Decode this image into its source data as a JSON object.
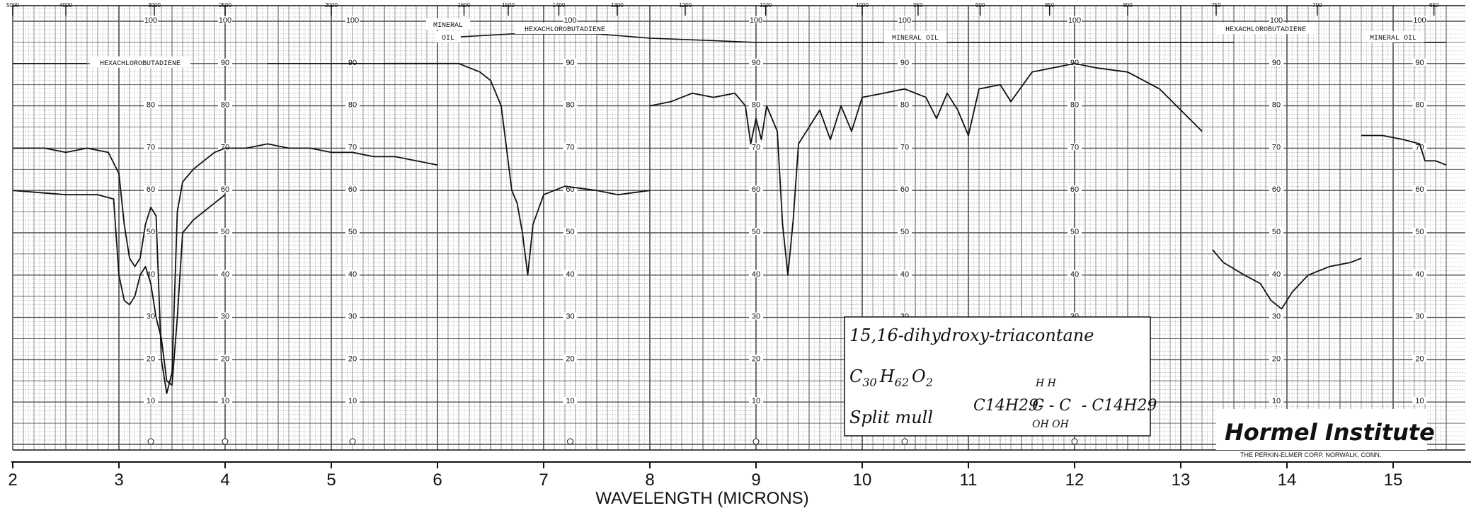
{
  "chart_data": {
    "type": "line",
    "title": "",
    "xlabel": "WAVELENGTH (MICRONS)",
    "ylabel": "",
    "xlim": [
      2,
      15.5
    ],
    "ylim": [
      0,
      100
    ],
    "grid": true,
    "x_ticks": [
      "2",
      "3",
      "4",
      "5",
      "6",
      "7",
      "8",
      "9",
      "10",
      "11",
      "12",
      "13",
      "14",
      "15"
    ],
    "y_ticks": [
      "0",
      "10",
      "20",
      "30",
      "40",
      "50",
      "60",
      "70",
      "80",
      "90",
      "100"
    ],
    "wavenumber_ticks": [
      {
        "value": 5000,
        "label": "5000"
      },
      {
        "value": 4000,
        "label": "4000"
      },
      {
        "value": 3000,
        "label": "3000"
      },
      {
        "value": 2500,
        "label": "2500"
      },
      {
        "value": 2000,
        "label": "2000"
      },
      {
        "value": 1600,
        "label": "1600"
      },
      {
        "value": 1500,
        "label": "1500"
      },
      {
        "value": 1400,
        "label": "1400"
      },
      {
        "value": 1300,
        "label": "1300"
      },
      {
        "value": 1200,
        "label": "1200"
      },
      {
        "value": 1100,
        "label": "1100"
      },
      {
        "value": 1000,
        "label": "1000"
      },
      {
        "value": 950,
        "label": "950"
      },
      {
        "value": 900,
        "label": "900"
      },
      {
        "value": 850,
        "label": "850"
      },
      {
        "value": 800,
        "label": "800"
      },
      {
        "value": 750,
        "label": "750"
      },
      {
        "value": 700,
        "label": "700"
      },
      {
        "value": 650,
        "label": "650"
      }
    ],
    "series": [
      {
        "name": "",
        "values": [
          [
            2.0,
            70
          ],
          [
            2.3,
            70
          ],
          [
            2.5,
            69
          ],
          [
            2.7,
            70
          ],
          [
            2.9,
            69
          ],
          [
            3.0,
            64
          ],
          [
            3.05,
            52
          ],
          [
            3.1,
            44
          ],
          [
            3.15,
            42
          ],
          [
            3.2,
            44
          ],
          [
            3.25,
            52
          ],
          [
            3.3,
            56
          ],
          [
            3.35,
            54
          ],
          [
            3.4,
            20
          ],
          [
            3.45,
            12
          ],
          [
            3.5,
            17
          ],
          [
            3.55,
            55
          ],
          [
            3.6,
            62
          ],
          [
            3.7,
            65
          ],
          [
            3.8,
            67
          ],
          [
            3.9,
            69
          ],
          [
            4.0,
            70
          ],
          [
            4.2,
            70
          ],
          [
            4.4,
            71
          ],
          [
            4.6,
            70
          ],
          [
            4.8,
            70
          ],
          [
            5.0,
            69
          ],
          [
            5.2,
            69
          ],
          [
            5.4,
            68
          ],
          [
            5.6,
            68
          ],
          [
            5.8,
            67
          ],
          [
            6.0,
            66
          ]
        ]
      },
      {
        "name": "",
        "values": [
          [
            2.0,
            60
          ],
          [
            2.5,
            59
          ],
          [
            2.8,
            59
          ],
          [
            2.95,
            58
          ],
          [
            3.0,
            40
          ],
          [
            3.05,
            34
          ],
          [
            3.1,
            33
          ],
          [
            3.15,
            35
          ],
          [
            3.2,
            40
          ],
          [
            3.25,
            42
          ],
          [
            3.3,
            38
          ],
          [
            3.35,
            30
          ],
          [
            3.4,
            25
          ],
          [
            3.45,
            15
          ],
          [
            3.5,
            14
          ],
          [
            3.55,
            30
          ],
          [
            3.6,
            50
          ],
          [
            3.7,
            53
          ],
          [
            3.8,
            55
          ],
          [
            3.9,
            57
          ],
          [
            4.0,
            59
          ]
        ]
      },
      {
        "name": "",
        "values": [
          [
            5.5,
            90
          ],
          [
            6.0,
            90
          ],
          [
            6.2,
            90
          ],
          [
            6.3,
            89
          ],
          [
            6.4,
            88
          ],
          [
            6.5,
            86
          ],
          [
            6.6,
            80
          ],
          [
            6.65,
            70
          ],
          [
            6.7,
            60
          ],
          [
            6.75,
            57
          ],
          [
            6.8,
            50
          ],
          [
            6.85,
            40
          ],
          [
            6.9,
            52
          ],
          [
            7.0,
            59
          ],
          [
            7.2,
            61
          ],
          [
            7.5,
            60
          ],
          [
            7.7,
            59
          ],
          [
            8.0,
            60
          ]
        ]
      },
      {
        "name": "",
        "values": [
          [
            8.0,
            80
          ],
          [
            8.2,
            81
          ],
          [
            8.4,
            83
          ],
          [
            8.6,
            82
          ],
          [
            8.8,
            83
          ],
          [
            8.9,
            80
          ],
          [
            8.95,
            71
          ],
          [
            9.0,
            77
          ],
          [
            9.05,
            72
          ],
          [
            9.1,
            80
          ],
          [
            9.2,
            74
          ],
          [
            9.25,
            52
          ],
          [
            9.3,
            40
          ],
          [
            9.35,
            53
          ],
          [
            9.4,
            71
          ],
          [
            9.5,
            75
          ],
          [
            9.6,
            79
          ],
          [
            9.7,
            72
          ],
          [
            9.8,
            80
          ],
          [
            9.9,
            74
          ],
          [
            10.0,
            82
          ],
          [
            10.2,
            83
          ],
          [
            10.4,
            84
          ],
          [
            10.6,
            82
          ],
          [
            10.7,
            77
          ],
          [
            10.8,
            83
          ],
          [
            10.9,
            79
          ],
          [
            11.0,
            73
          ],
          [
            11.1,
            84
          ],
          [
            11.3,
            85
          ],
          [
            11.4,
            81
          ],
          [
            11.6,
            88
          ],
          [
            11.8,
            89
          ],
          [
            12.0,
            90
          ],
          [
            12.2,
            89
          ],
          [
            12.5,
            88
          ],
          [
            12.8,
            84
          ],
          [
            13.0,
            79
          ],
          [
            13.2,
            74
          ]
        ]
      },
      {
        "name": "",
        "values": [
          [
            13.3,
            46
          ],
          [
            13.4,
            43
          ],
          [
            13.6,
            40
          ],
          [
            13.75,
            38
          ],
          [
            13.85,
            34
          ],
          [
            13.95,
            32
          ],
          [
            14.05,
            36
          ],
          [
            14.2,
            40
          ],
          [
            14.4,
            42
          ],
          [
            14.6,
            43
          ],
          [
            14.7,
            44
          ]
        ]
      },
      {
        "name": "",
        "values": [
          [
            14.7,
            73
          ],
          [
            14.9,
            73
          ],
          [
            15.1,
            72
          ],
          [
            15.25,
            71
          ],
          [
            15.3,
            67
          ],
          [
            15.4,
            67
          ],
          [
            15.5,
            66
          ]
        ]
      }
    ],
    "reference_lines": [
      {
        "values": [
          [
            2.0,
            90
          ],
          [
            2.5,
            90
          ],
          [
            2.7,
            90
          ]
        ]
      },
      {
        "values": [
          [
            4.4,
            90
          ],
          [
            6.0,
            90
          ]
        ]
      },
      {
        "values": [
          [
            6.0,
            96
          ],
          [
            6.7,
            97
          ],
          [
            7.5,
            97
          ],
          [
            8.0,
            96
          ],
          [
            9.0,
            95
          ],
          [
            10.0,
            95
          ],
          [
            11.0,
            95
          ],
          [
            12.0,
            95
          ],
          [
            13.0,
            95
          ],
          [
            13.5,
            95
          ]
        ]
      },
      {
        "values": [
          [
            15.0,
            95
          ],
          [
            15.5,
            95
          ]
        ]
      }
    ],
    "annotations": {
      "solvent_labels": [
        {
          "text": "HEXACHLOROBUTADIENE",
          "x": 3.2,
          "y": 90
        },
        {
          "text": "MINERAL",
          "x": 6.1,
          "y": 99
        },
        {
          "text": "OIL",
          "x": 6.1,
          "y": 96
        },
        {
          "text": "HEXACHLOROBUTADIENE",
          "x": 7.2,
          "y": 98
        },
        {
          "text": "MINERAL OIL",
          "x": 10.5,
          "y": 96
        },
        {
          "text": "HEXACHLOROBUTADIENE",
          "x": 13.8,
          "y": 98
        },
        {
          "text": "MINERAL OIL",
          "x": 15.0,
          "y": 96
        }
      ],
      "compound": "15,16-dihydroxy-triacontane",
      "formula": {
        "base_c": "C",
        "sub_c": "30",
        "base_h": "H",
        "sub_h": "62",
        "base_o": "O",
        "sub_o": "2"
      },
      "sample_prep": "Split mull",
      "structure": {
        "left": "C14H29-",
        "chain": "C - C",
        "right": "- C14H29",
        "top": "H   H",
        "bottom": "OH OH"
      },
      "institute": "Hormel Institute",
      "manufacturer": "THE PERKIN-ELMER CORP. NORWALK, CONN."
    }
  },
  "colors": {
    "grid": "#4d4d4d",
    "line": "#111111",
    "paper": "#ffffff"
  }
}
